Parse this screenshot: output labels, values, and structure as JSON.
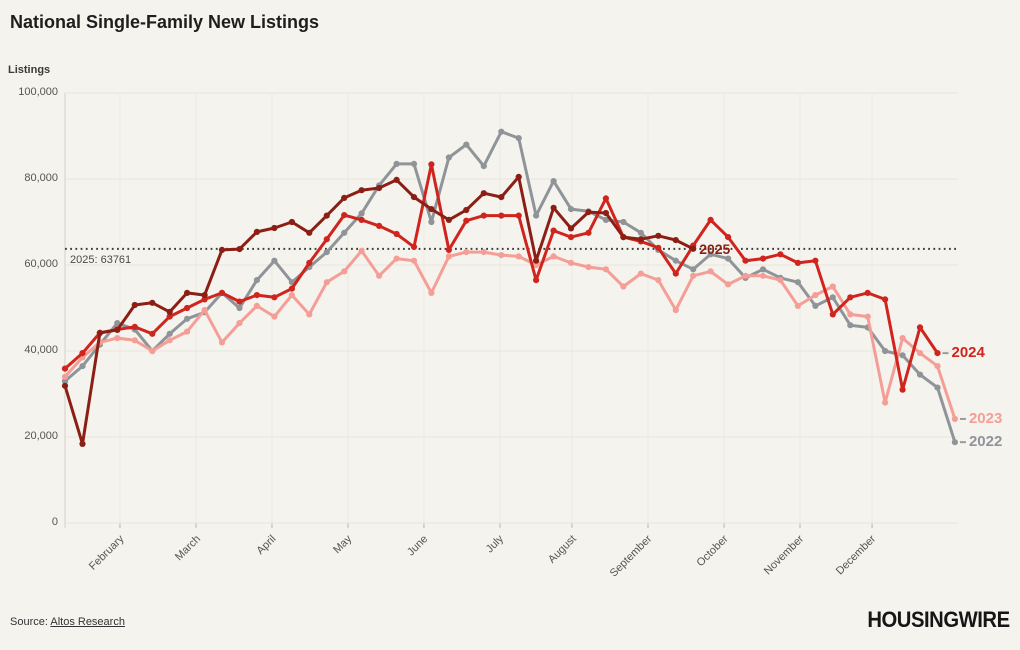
{
  "header": {
    "title": "National Single-Family New Listings"
  },
  "y_axis": {
    "label": "Listings",
    "tick_labels": [
      "0",
      "20,000",
      "40,000",
      "60,000",
      "80,000",
      "100,000"
    ]
  },
  "chart_data": {
    "type": "line",
    "title": "National Single-Family New Listings",
    "ylabel": "Listings",
    "x_unit": "week-of-year",
    "ylim": [
      0,
      100000
    ],
    "y_ticks": [
      0,
      20000,
      40000,
      60000,
      80000,
      100000
    ],
    "grid": true,
    "x_tick_labels": [
      "February",
      "March",
      "April",
      "May",
      "June",
      "July",
      "August",
      "September",
      "October",
      "November",
      "December"
    ],
    "x_tick_weeks": [
      4.15,
      8.51,
      12.86,
      17.22,
      21.57,
      25.93,
      30.05,
      34.41,
      38.77,
      43.12,
      47.25
    ],
    "reference_line": {
      "label": "2025: 63761",
      "value": 63761,
      "style": "dotted",
      "color": "#3c3c3c"
    },
    "series": [
      {
        "name": "2022",
        "label": "2022",
        "color": "#8f9499",
        "end_dash": true,
        "values": [
          33000,
          36500,
          41500,
          46500,
          45000,
          40000,
          44000,
          47500,
          49000,
          53500,
          50000,
          56500,
          61000,
          56000,
          59500,
          63000,
          67500,
          72000,
          78500,
          83500,
          83500,
          70000,
          85000,
          88000,
          83000,
          91000,
          89500,
          71500,
          79500,
          73000,
          72500,
          70500,
          70000,
          67500,
          63500,
          61000,
          59000,
          62500,
          61500,
          57000,
          59000,
          57000,
          56000,
          50500,
          52500,
          46000,
          45500,
          40000,
          39000,
          34500,
          31500,
          18800
        ]
      },
      {
        "name": "2023",
        "label": "2023",
        "color": "#f49e97",
        "end_dash": true,
        "values": [
          34000,
          38500,
          42000,
          43000,
          42500,
          40000,
          42500,
          44500,
          49500,
          42000,
          46500,
          50500,
          48000,
          53000,
          48500,
          56000,
          58500,
          63300,
          57500,
          61500,
          61000,
          53500,
          62000,
          63000,
          63000,
          62300,
          62000,
          60000,
          62000,
          60500,
          59500,
          59000,
          55000,
          58000,
          56500,
          49500,
          57500,
          58500,
          55500,
          57500,
          57500,
          56500,
          50500,
          53000,
          55000,
          48500,
          48000,
          28000,
          43000,
          39500,
          36500,
          24200
        ]
      },
      {
        "name": "2024",
        "label": "2024",
        "color": "#d0241e",
        "end_dash": true,
        "values": [
          35900,
          39500,
          44200,
          45000,
          45600,
          44000,
          48000,
          50000,
          52000,
          53500,
          51500,
          53000,
          52500,
          54500,
          60500,
          66000,
          71600,
          70500,
          69100,
          67200,
          64200,
          83400,
          63500,
          70300,
          71500,
          71500,
          71500,
          56500,
          68000,
          66500,
          67500,
          75500,
          66500,
          65500,
          64000,
          58000,
          64500,
          70500,
          66500,
          61000,
          61500,
          62500,
          60500,
          61000,
          48500,
          52500,
          53500,
          52000,
          31000,
          45500,
          39500
        ]
      },
      {
        "name": "2025",
        "label": "2025",
        "color": "#8b1f15",
        "end_dash": false,
        "values": [
          31900,
          18400,
          44200,
          44900,
          50700,
          51200,
          49100,
          53500,
          53000,
          63500,
          63700,
          67700,
          68600,
          70000,
          67500,
          71500,
          75600,
          77400,
          77900,
          79800,
          75800,
          73000,
          70500,
          72800,
          76700,
          75800,
          80500,
          61000,
          73300,
          68500,
          72300,
          72100,
          66500,
          66000,
          66800,
          65800,
          63761
        ]
      }
    ],
    "legend_position": "line-end-labels"
  },
  "footer": {
    "source_prefix": "Source: ",
    "source_link": "Altos Research",
    "logo": "HOUSINGWIRE"
  }
}
